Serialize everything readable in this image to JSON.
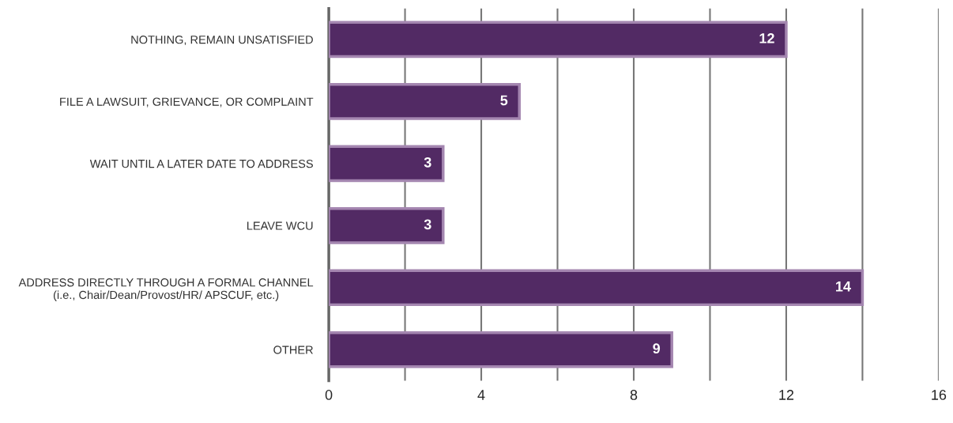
{
  "chart_data": {
    "type": "bar",
    "orientation": "horizontal",
    "categories": [
      "NOTHING, REMAIN UNSATISFIED",
      "FILE A LAWSUIT, GRIEVANCE, OR COMPLAINT",
      "WAIT UNTIL A LATER DATE TO ADDRESS",
      "LEAVE WCU",
      "ADDRESS DIRECTLY THROUGH A FORMAL CHANNEL\n(i.e., Chair/Dean/Provost/HR/ APSCUF, etc.)",
      "OTHER"
    ],
    "values": [
      12,
      5,
      3,
      3,
      14,
      9
    ],
    "color": "#522a64",
    "xlim": [
      0,
      16
    ],
    "xticks": [
      0,
      {
        "value": 2,
        "label": null
      },
      4,
      {
        "value": 6,
        "label": null
      },
      8,
      {
        "value": 10,
        "label": null
      },
      12,
      {
        "value": 14,
        "label": null
      },
      16
    ],
    "grid": "x",
    "data_labels": true,
    "legend": false
  }
}
